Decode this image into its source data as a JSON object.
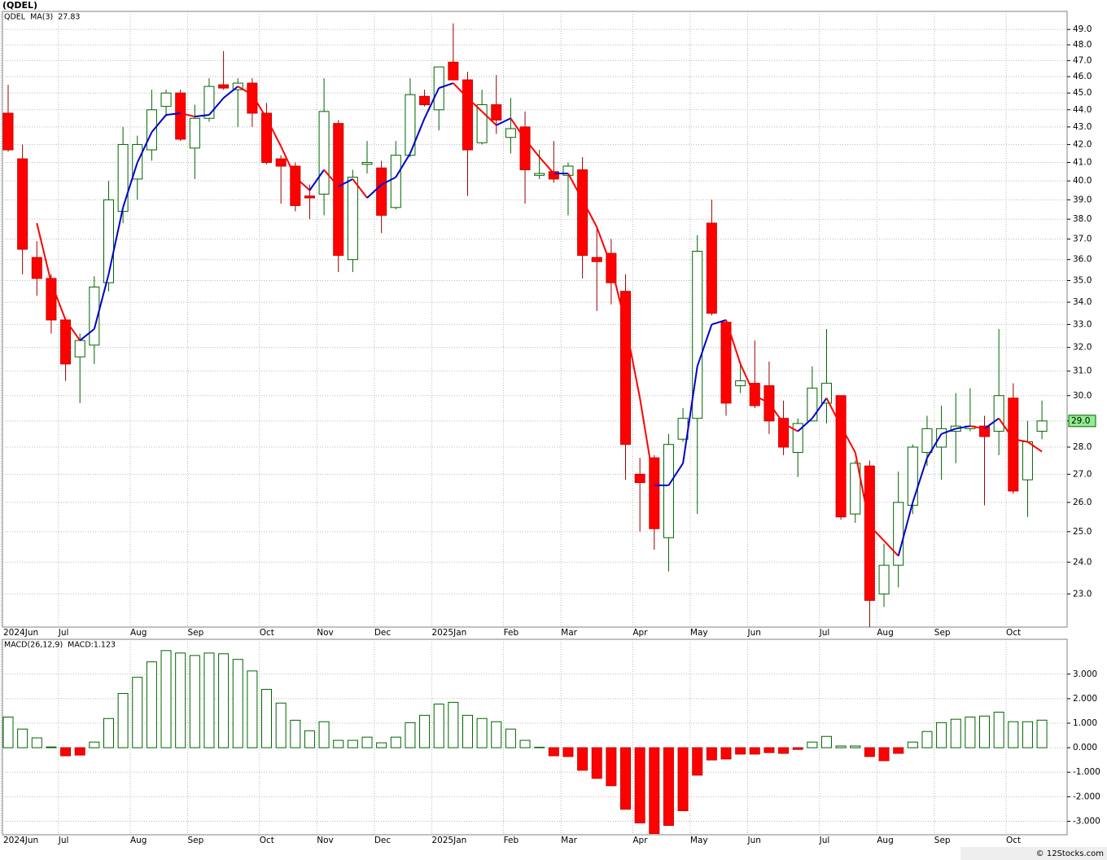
{
  "chart_data": [
    {
      "type": "candlestick",
      "title": "(QDEL)",
      "symbol": "QDEL",
      "categories": [
        "2024Jun",
        null,
        null,
        null,
        "Jul",
        null,
        null,
        null,
        null,
        "Aug",
        null,
        null,
        null,
        "Sep",
        null,
        null,
        null,
        null,
        "Oct",
        null,
        null,
        null,
        "Nov",
        null,
        null,
        null,
        "Dec",
        null,
        null,
        null,
        "2025Jan",
        null,
        null,
        null,
        null,
        "Feb",
        null,
        null,
        null,
        "Mar",
        null,
        null,
        null,
        null,
        "Apr",
        null,
        null,
        null,
        "May",
        null,
        null,
        null,
        "Jun",
        null,
        null,
        null,
        null,
        "Jul",
        null,
        null,
        null,
        "Aug",
        null,
        null,
        null,
        "Sep",
        null,
        null,
        null,
        null,
        "Oct",
        null,
        null
      ],
      "open": [
        43.8,
        41.2,
        36.1,
        35.1,
        33.2,
        31.6,
        32.1,
        34.9,
        38.4,
        40.1,
        41.7,
        44.2,
        45.0,
        41.8,
        43.5,
        45.5,
        45.2,
        45.6,
        43.8,
        41.2,
        40.8,
        39.2,
        39.3,
        43.2,
        36.0,
        40.9,
        40.7,
        38.6,
        41.4,
        44.8,
        44.0,
        46.9,
        45.8,
        42.1,
        44.3,
        42.4,
        43.0,
        40.3,
        40.5,
        40.3,
        40.6,
        36.1,
        36.3,
        34.5,
        27.0,
        27.6,
        24.8,
        28.3,
        29.1,
        37.8,
        33.1,
        30.4,
        30.5,
        30.4,
        29.1,
        27.8,
        29.0,
        29.7,
        30.0,
        25.6,
        27.3,
        23.0,
        23.9,
        25.9,
        27.8,
        28.0,
        28.6,
        28.7,
        28.8,
        28.6,
        29.9,
        26.8,
        28.6
      ],
      "high": [
        45.5,
        42.0,
        36.9,
        35.3,
        33.3,
        32.6,
        35.2,
        40.0,
        43.0,
        42.5,
        45.2,
        45.2,
        45.2,
        44.3,
        45.9,
        47.6,
        45.9,
        45.9,
        44.4,
        41.4,
        41.0,
        39.8,
        45.9,
        43.4,
        40.6,
        42.2,
        41.1,
        42.2,
        45.9,
        45.2,
        46.6,
        49.4,
        46.3,
        45.2,
        46.1,
        44.7,
        43.9,
        41.7,
        42.2,
        41.0,
        41.3,
        37.6,
        37.0,
        35.3,
        27.6,
        27.7,
        28.5,
        29.5,
        37.2,
        39.0,
        33.2,
        31.4,
        32.3,
        31.4,
        29.8,
        29.1,
        31.2,
        32.8,
        30.0,
        27.5,
        27.5,
        24.6,
        27.1,
        28.1,
        29.2,
        29.6,
        30.1,
        30.3,
        29.2,
        32.8,
        30.5,
        29.0,
        29.8
      ],
      "low": [
        41.6,
        35.3,
        34.3,
        32.6,
        30.6,
        29.7,
        31.3,
        34.5,
        37.8,
        39.0,
        41.1,
        43.6,
        42.2,
        40.1,
        43.3,
        45.2,
        43.0,
        43.0,
        40.9,
        38.8,
        38.4,
        38.0,
        38.2,
        35.4,
        35.4,
        40.4,
        37.3,
        38.5,
        41.3,
        44.2,
        42.8,
        45.8,
        39.2,
        42.0,
        42.6,
        41.5,
        38.8,
        40.1,
        39.9,
        38.2,
        35.1,
        33.6,
        33.9,
        26.8,
        25.0,
        24.4,
        23.7,
        28.2,
        25.6,
        33.4,
        29.2,
        30.1,
        29.5,
        28.5,
        27.7,
        26.9,
        29.0,
        28.9,
        25.4,
        25.3,
        22.0,
        22.6,
        23.2,
        25.6,
        27.3,
        26.8,
        27.4,
        28.6,
        25.9,
        27.7,
        26.3,
        25.5,
        28.3
      ],
      "close": [
        41.7,
        36.5,
        35.1,
        33.2,
        31.3,
        32.3,
        34.7,
        39.0,
        42.0,
        42.0,
        44.0,
        45.0,
        42.3,
        43.5,
        45.4,
        45.3,
        45.6,
        43.8,
        41.0,
        40.8,
        38.7,
        39.1,
        43.9,
        36.2,
        40.2,
        41.0,
        38.2,
        41.4,
        44.9,
        44.3,
        46.6,
        45.8,
        41.7,
        44.3,
        43.4,
        42.9,
        40.6,
        40.4,
        40.1,
        40.8,
        36.2,
        35.9,
        34.9,
        28.1,
        26.7,
        25.1,
        28.1,
        29.1,
        36.4,
        33.5,
        29.7,
        30.6,
        29.6,
        29.0,
        28.0,
        28.9,
        30.3,
        30.5,
        25.5,
        27.4,
        22.8,
        23.9,
        26.0,
        28.0,
        28.7,
        28.7,
        28.8,
        28.8,
        28.4,
        30.0,
        26.4,
        28.2,
        29.0
      ],
      "up_color": "#006400",
      "down_color": "#ff0000",
      "series": [
        {
          "name": "MA(3)",
          "value_label": "27.83",
          "up_color": "#0000cc",
          "down_color": "#ff0000",
          "values": [
            null,
            null,
            37.8,
            34.9,
            33.2,
            32.3,
            32.8,
            35.3,
            38.6,
            41.0,
            42.7,
            43.7,
            43.8,
            43.6,
            43.7,
            44.7,
            45.4,
            44.9,
            43.5,
            41.9,
            40.2,
            39.5,
            40.6,
            39.7,
            40.1,
            39.1,
            39.8,
            40.2,
            41.5,
            43.5,
            45.3,
            45.6,
            44.7,
            43.9,
            43.1,
            43.5,
            42.3,
            41.3,
            40.4,
            40.4,
            39.0,
            37.6,
            35.7,
            33.0,
            29.9,
            26.6,
            26.6,
            27.4,
            31.2,
            33.0,
            33.2,
            31.3,
            30.0,
            29.7,
            28.9,
            28.6,
            29.1,
            29.9,
            28.8,
            27.8,
            25.2,
            24.7,
            24.2,
            26.0,
            27.6,
            28.5,
            28.7,
            28.8,
            28.7,
            29.1,
            28.3,
            28.2,
            27.83
          ]
        }
      ],
      "last_price": {
        "value": 29.0,
        "label": "29.0"
      },
      "log_scale": true,
      "grid": true,
      "ylim": [
        22.0,
        50.2
      ],
      "yticks": [
        {
          "value": 23,
          "label": "23.0"
        },
        {
          "value": 24,
          "label": "24.0"
        },
        {
          "value": 25,
          "label": "25.0"
        },
        {
          "value": 26,
          "label": "26.0"
        },
        {
          "value": 27,
          "label": "27.0"
        },
        {
          "value": 28,
          "label": "28.0"
        },
        {
          "value": 29,
          "label": "29.0"
        },
        {
          "value": 30,
          "label": "30.0"
        },
        {
          "value": 31,
          "label": "31.0"
        },
        {
          "value": 32,
          "label": "32.0"
        },
        {
          "value": 33,
          "label": "33.0"
        },
        {
          "value": 34,
          "label": "34.0"
        },
        {
          "value": 35,
          "label": "35.0"
        },
        {
          "value": 36,
          "label": "36.0"
        },
        {
          "value": 37,
          "label": "37.0"
        },
        {
          "value": 38,
          "label": "38.0"
        },
        {
          "value": 39,
          "label": "39.0"
        },
        {
          "value": 40,
          "label": "40.0"
        },
        {
          "value": 41,
          "label": "41.0"
        },
        {
          "value": 42,
          "label": "42.0"
        },
        {
          "value": 43,
          "label": "43.0"
        },
        {
          "value": 44,
          "label": "44.0"
        },
        {
          "value": 45,
          "label": "45.0"
        },
        {
          "value": 46,
          "label": "46.0"
        },
        {
          "value": 47,
          "label": "47.0"
        },
        {
          "value": 48,
          "label": "48.0"
        },
        {
          "value": 49,
          "label": "49.0"
        }
      ]
    },
    {
      "type": "bar",
      "title": "MACD(26,12,9)",
      "value_label": "MACD:1.123",
      "categories": [
        "2024Jun",
        null,
        null,
        null,
        "Jul",
        null,
        null,
        null,
        null,
        "Aug",
        null,
        null,
        null,
        "Sep",
        null,
        null,
        null,
        null,
        "Oct",
        null,
        null,
        null,
        "Nov",
        null,
        null,
        null,
        "Dec",
        null,
        null,
        null,
        "2025Jan",
        null,
        null,
        null,
        null,
        "Feb",
        null,
        null,
        null,
        "Mar",
        null,
        null,
        null,
        null,
        "Apr",
        null,
        null,
        null,
        "May",
        null,
        null,
        null,
        "Jun",
        null,
        null,
        null,
        null,
        "Jul",
        null,
        null,
        null,
        "Aug",
        null,
        null,
        null,
        "Sep",
        null,
        null,
        null,
        null,
        "Oct",
        null,
        null
      ],
      "values": [
        1.25,
        0.76,
        0.4,
        0.03,
        -0.33,
        -0.3,
        0.23,
        1.19,
        2.21,
        2.87,
        3.5,
        3.96,
        3.86,
        3.76,
        3.86,
        3.83,
        3.6,
        3.13,
        2.38,
        1.82,
        1.12,
        0.69,
        1.06,
        0.3,
        0.3,
        0.43,
        0.2,
        0.43,
        1.02,
        1.32,
        1.78,
        1.85,
        1.32,
        1.19,
        1.06,
        0.76,
        0.3,
        0.02,
        -0.33,
        -0.36,
        -0.92,
        -1.25,
        -1.55,
        -2.51,
        -3.07,
        -3.5,
        -3.17,
        -2.57,
        -1.12,
        -0.5,
        -0.46,
        -0.26,
        -0.26,
        -0.2,
        -0.23,
        -0.07,
        0.23,
        0.46,
        0.07,
        0.07,
        -0.36,
        -0.53,
        -0.23,
        0.23,
        0.66,
        1.02,
        1.16,
        1.25,
        1.29,
        1.45,
        1.06,
        1.06,
        1.123
      ],
      "up_color": "#006400",
      "down_color": "#ff0000",
      "grid": true,
      "ylim": [
        -3.55,
        4.42
      ],
      "yticks": [
        {
          "value": -3,
          "label": "-3.000"
        },
        {
          "value": -2,
          "label": "-2.000"
        },
        {
          "value": -1,
          "label": "-1.000"
        },
        {
          "value": 0,
          "label": "0.000"
        },
        {
          "value": 1,
          "label": "1.000"
        },
        {
          "value": 2,
          "label": "2.000"
        },
        {
          "value": 3,
          "label": "3.000"
        }
      ]
    }
  ],
  "footer": "© 12Stocks.com"
}
